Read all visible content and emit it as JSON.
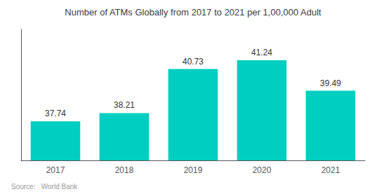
{
  "chart_data": {
    "type": "bar",
    "title": "Number of ATMs Globally from 2017 to 2021 per 1,00,000 Adult",
    "categories": [
      "2017",
      "2018",
      "2019",
      "2020",
      "2021"
    ],
    "values": [
      37.74,
      38.21,
      40.73,
      41.24,
      39.49
    ],
    "color": "#00CEC0",
    "ylim": [
      35.5,
      43.0
    ],
    "yticks": [],
    "grid": false,
    "data_labels": true,
    "tick_labels": "x",
    "annotations": [
      "Source:   World Bank"
    ]
  }
}
